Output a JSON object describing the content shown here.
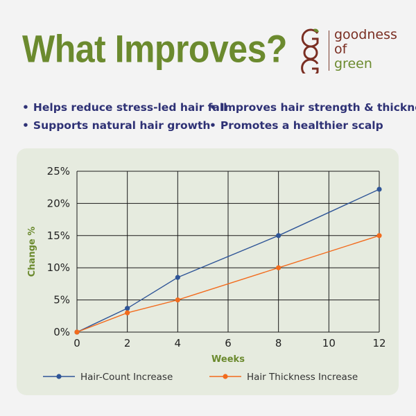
{
  "header": {
    "headline": "What Improves?"
  },
  "brand": {
    "line1": "goodness",
    "line2": "of",
    "line3": "green",
    "mark_icon": "gog-logo-icon"
  },
  "benefits": [
    "Helps reduce stress-led hair fall",
    "Improves hair strength & thickness",
    "Supports natural hair growth",
    "Promotes a healthier scalp"
  ],
  "colors": {
    "headline": "#6b8a2e",
    "benefit_text": "#2e3175",
    "card_bg": "#e6ebdf",
    "series_blue": "#2f5597",
    "series_orange": "#f26b1d",
    "axis_title": "#6b8a2e"
  },
  "chart_data": {
    "type": "line",
    "xlabel": "Weeks",
    "ylabel": "Change %",
    "xlim": [
      0,
      12
    ],
    "ylim": [
      0,
      25
    ],
    "x_ticks": [
      "0",
      "2",
      "4",
      "6",
      "8",
      "10",
      "12"
    ],
    "y_ticks": [
      "0%",
      "5%",
      "10%",
      "15%",
      "20%",
      "25%"
    ],
    "grid": true,
    "legend_position": "bottom",
    "series": [
      {
        "name": "Hair-Count Increase",
        "color": "#2f5597",
        "x": [
          0,
          2,
          4,
          8,
          12
        ],
        "y": [
          0,
          3.7,
          8.5,
          15,
          22.2
        ]
      },
      {
        "name": "Hair Thickness Increase",
        "color": "#f26b1d",
        "x": [
          0,
          2,
          4,
          8,
          12
        ],
        "y": [
          0,
          3,
          5,
          10,
          15
        ]
      }
    ]
  }
}
